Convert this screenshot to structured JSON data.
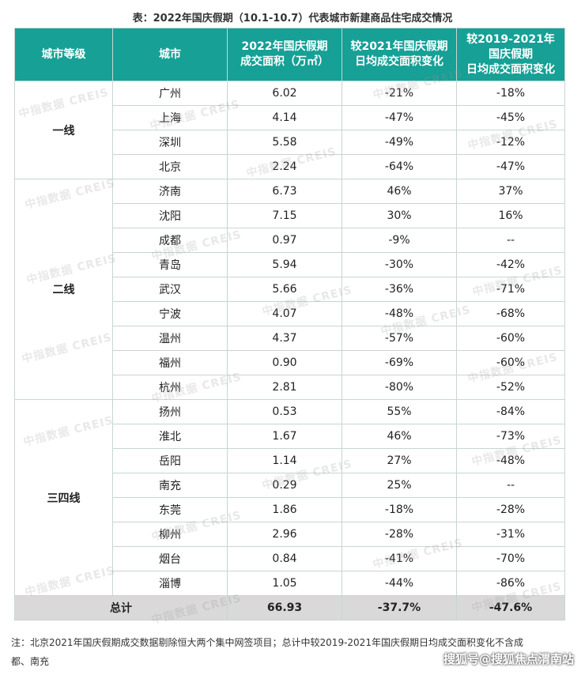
{
  "title": "表：2022年国庆假期（10.1-10.7）代表城市新建商品住宅成交情况",
  "headers": {
    "tier": "城市等级",
    "city": "城市",
    "area": [
      "2022年国庆假期",
      "成交面积（万㎡）"
    ],
    "vs2021": [
      "较2021年国庆假期",
      "日均成交面积变化"
    ],
    "vs2019": [
      "较2019-2021年",
      "国庆假期",
      "日均成交面积变化"
    ]
  },
  "tiers": [
    "一线",
    "二线",
    "三四线"
  ],
  "rows": [
    {
      "city": "广州",
      "area": "6.02",
      "vs2021": "-21%",
      "vs2019": "-18%"
    },
    {
      "city": "上海",
      "area": "4.14",
      "vs2021": "-47%",
      "vs2019": "-45%"
    },
    {
      "city": "深圳",
      "area": "5.58",
      "vs2021": "-49%",
      "vs2019": "-12%"
    },
    {
      "city": "北京",
      "area": "2.24",
      "vs2021": "-64%",
      "vs2019": "-47%"
    },
    {
      "city": "济南",
      "area": "6.73",
      "vs2021": "46%",
      "vs2019": "37%"
    },
    {
      "city": "沈阳",
      "area": "7.15",
      "vs2021": "30%",
      "vs2019": "16%"
    },
    {
      "city": "成都",
      "area": "0.97",
      "vs2021": "-9%",
      "vs2019": "--"
    },
    {
      "city": "青岛",
      "area": "5.94",
      "vs2021": "-30%",
      "vs2019": "-42%"
    },
    {
      "city": "武汉",
      "area": "5.66",
      "vs2021": "-36%",
      "vs2019": "-71%"
    },
    {
      "city": "宁波",
      "area": "4.07",
      "vs2021": "-48%",
      "vs2019": "-68%"
    },
    {
      "city": "温州",
      "area": "4.37",
      "vs2021": "-57%",
      "vs2019": "-60%"
    },
    {
      "city": "福州",
      "area": "0.90",
      "vs2021": "-69%",
      "vs2019": "-60%"
    },
    {
      "city": "杭州",
      "area": "2.81",
      "vs2021": "-80%",
      "vs2019": "-52%"
    },
    {
      "city": "扬州",
      "area": "0.53",
      "vs2021": "55%",
      "vs2019": "-84%"
    },
    {
      "city": "淮北",
      "area": "1.67",
      "vs2021": "46%",
      "vs2019": "-73%"
    },
    {
      "city": "岳阳",
      "area": "1.14",
      "vs2021": "27%",
      "vs2019": "-48%"
    },
    {
      "city": "南充",
      "area": "0.29",
      "vs2021": "25%",
      "vs2019": "--"
    },
    {
      "city": "东莞",
      "area": "1.86",
      "vs2021": "-18%",
      "vs2019": "-28%"
    },
    {
      "city": "柳州",
      "area": "2.96",
      "vs2021": "-28%",
      "vs2019": "-31%"
    },
    {
      "city": "烟台",
      "area": "0.84",
      "vs2021": "-41%",
      "vs2019": "-70%"
    },
    {
      "city": "淄博",
      "area": "1.05",
      "vs2021": "-44%",
      "vs2019": "-86%"
    }
  ],
  "total": {
    "label": "总计",
    "area": "66.93",
    "vs2021": "-37.7%",
    "vs2019": "-47.6%"
  },
  "note_line1": "注：北京2021年国庆假期成交数据剔除恒大两个集中网签项目；总计中较2019-2021年国庆假期日均成交面积变化不含成",
  "note_line2": "都、南充",
  "watermark": "中指数据 CREIS",
  "brand": "搜狐号@搜狐焦点渭南站"
}
